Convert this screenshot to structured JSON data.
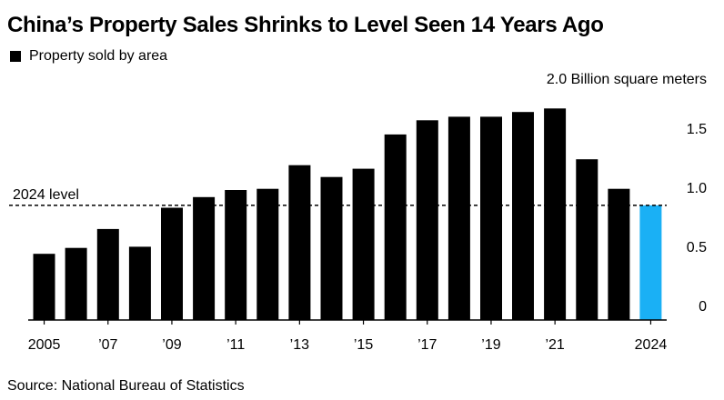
{
  "title": "China’s Property Sales Shrinks to Level Seen 14 Years Ago",
  "source": "Source: National Bureau of Statistics",
  "colors": {
    "bar": "#000000",
    "highlight": "#1ab0f5",
    "axis": "#000000"
  },
  "chart_data": {
    "type": "bar",
    "title": "China’s Property Sales Shrinks to Level Seen 14 Years Ago",
    "ylabel": "2.0 Billion square meters",
    "ylim": [
      0,
      2.0
    ],
    "yticks": [
      {
        "value": 0,
        "label": "0"
      },
      {
        "value": 0.5,
        "label": "0.5"
      },
      {
        "value": 1.0,
        "label": "1.0"
      },
      {
        "value": 1.5,
        "label": "1.5"
      }
    ],
    "xtick_labels": [
      "2005",
      "'07",
      "'09",
      "'11",
      "'13",
      "'15",
      "'17",
      "'19",
      "'21",
      "2024"
    ],
    "xtick_labels_display": [
      "2005",
      "’07",
      "’09",
      "’11",
      "’13",
      "’15",
      "’17",
      "’19",
      "’21",
      "2024"
    ],
    "categories": [
      2005,
      2006,
      2007,
      2008,
      2009,
      2010,
      2011,
      2012,
      2013,
      2014,
      2015,
      2016,
      2017,
      2018,
      2019,
      2020,
      2021,
      2022,
      2023,
      2024
    ],
    "series": [
      {
        "name": "Property sold by area",
        "values": [
          0.56,
          0.61,
          0.77,
          0.62,
          0.95,
          1.04,
          1.1,
          1.11,
          1.31,
          1.21,
          1.28,
          1.57,
          1.69,
          1.72,
          1.72,
          1.76,
          1.79,
          1.36,
          1.11,
          0.97
        ]
      }
    ],
    "highlight_category": 2024,
    "reference_line": {
      "label": "2024 level",
      "value": 0.97
    },
    "grid": false,
    "legend": "top-left"
  }
}
